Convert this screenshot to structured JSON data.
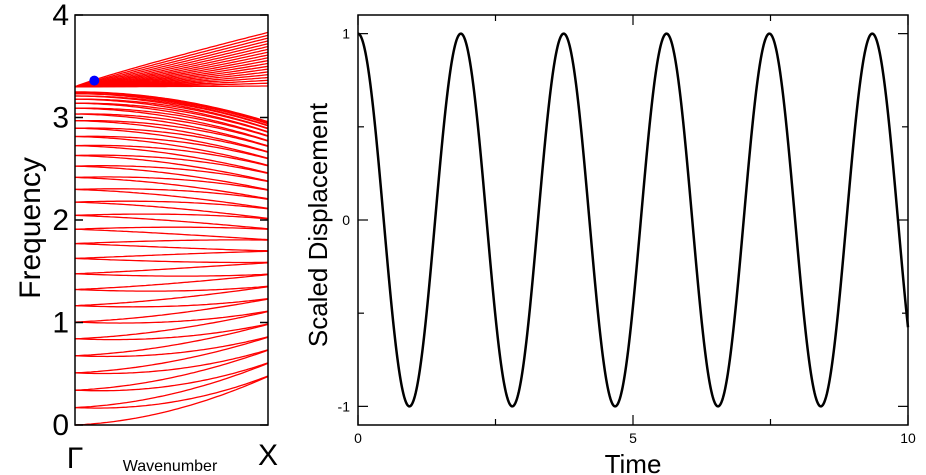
{
  "chart_data": [
    {
      "type": "line",
      "xlabel": "Wavenumber",
      "ylabel": "Frequency",
      "x_ticks": [
        "Γ",
        "X"
      ],
      "y_ticks": [
        "0",
        "1",
        "2",
        "3",
        "4"
      ],
      "ylim": [
        0,
        4
      ],
      "xlim": [
        0,
        1
      ],
      "grid": false,
      "legend": "none",
      "line_color": "#ff0000",
      "marker_color": "#0000ff",
      "band_count": 60,
      "acoustic_max_frequency": 3.25,
      "optical_frequency_at_gamma": 3.3,
      "optical_max_frequency": 3.83,
      "frequency_at_x_converge": 2.3,
      "marker": {
        "x": 0.1,
        "y": 3.36
      }
    },
    {
      "type": "line",
      "xlabel": "Time",
      "ylabel": "Scaled Displacement",
      "x_ticks": [
        "0",
        "5",
        "10"
      ],
      "y_ticks": [
        "-1",
        "0",
        "1"
      ],
      "xlim": [
        0,
        10
      ],
      "ylim": [
        -1.1,
        1.1
      ],
      "grid": false,
      "legend": "none",
      "line_color": "#000000",
      "function": "cos",
      "period": 1.87,
      "amplitude": 1,
      "series": [
        {
          "x_start": 0,
          "x_end": 10
        }
      ]
    }
  ]
}
